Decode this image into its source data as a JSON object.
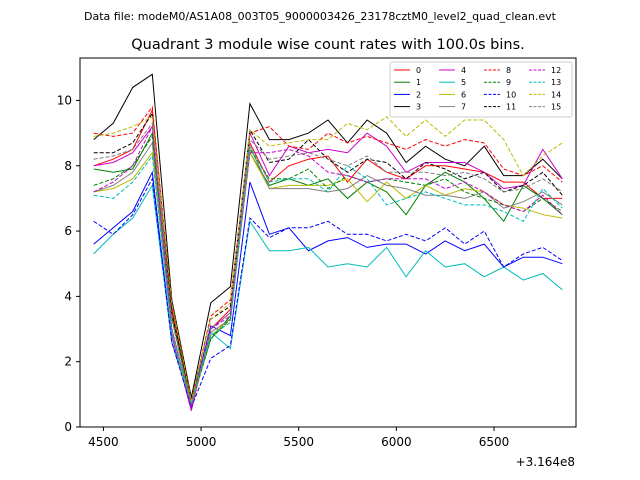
{
  "chart_data": {
    "type": "line",
    "suptitle": "Data file: modeM0/AS1A08_003T05_9000003426_23178cztM0_level2_quad_clean.evt",
    "title": "Quadrant 3 module wise count rates with 100.0s bins.",
    "xlabel": "",
    "ylabel": "",
    "x_offset_label": "+3.164e8",
    "xlim": [
      4380,
      6920
    ],
    "ylim": [
      0,
      11.3
    ],
    "x_ticks": [
      4500,
      5000,
      5500,
      6000,
      6500
    ],
    "y_ticks": [
      0,
      2,
      4,
      6,
      8,
      10
    ],
    "grid": false,
    "legend_position": "top-right",
    "legend_columns": 4,
    "x": [
      4450,
      4550,
      4650,
      4750,
      4850,
      4950,
      5050,
      5150,
      5250,
      5350,
      5450,
      5550,
      5650,
      5750,
      5850,
      5950,
      6050,
      6150,
      6250,
      6350,
      6450,
      6550,
      6650,
      6750,
      6850
    ],
    "series": [
      {
        "name": "0",
        "color": "#ff0000",
        "style": "solid",
        "values": [
          8.0,
          8.2,
          8.5,
          9.7,
          3.7,
          0.8,
          3.0,
          3.6,
          8.7,
          7.5,
          8.0,
          8.2,
          8.3,
          7.5,
          8.2,
          7.8,
          7.6,
          8.0,
          8.0,
          7.9,
          7.8,
          7.5,
          7.5,
          7.0,
          7.0
        ]
      },
      {
        "name": "1",
        "color": "#008000",
        "style": "solid",
        "values": [
          7.9,
          7.8,
          7.9,
          9.0,
          3.4,
          0.7,
          2.7,
          3.4,
          8.4,
          7.4,
          7.6,
          7.4,
          7.6,
          7.0,
          7.5,
          7.2,
          6.5,
          7.4,
          7.8,
          7.5,
          7.0,
          6.3,
          7.4,
          7.0,
          6.5
        ]
      },
      {
        "name": "2",
        "color": "#0000ff",
        "style": "solid",
        "values": [
          5.6,
          6.1,
          6.6,
          7.8,
          2.6,
          0.7,
          3.1,
          2.8,
          7.5,
          5.9,
          6.1,
          5.4,
          5.7,
          5.8,
          5.5,
          5.6,
          5.6,
          5.3,
          5.7,
          5.4,
          5.6,
          4.9,
          5.2,
          5.2,
          5.0
        ]
      },
      {
        "name": "3",
        "color": "#000000",
        "style": "solid",
        "values": [
          8.8,
          9.3,
          10.4,
          10.8,
          3.9,
          0.9,
          3.8,
          4.3,
          9.9,
          8.8,
          8.8,
          9.0,
          9.4,
          8.7,
          9.4,
          9.0,
          8.1,
          8.6,
          8.2,
          8.0,
          8.6,
          7.7,
          7.7,
          8.2,
          7.6
        ]
      },
      {
        "name": "4",
        "color": "#cc00cc",
        "style": "solid",
        "values": [
          8.0,
          8.1,
          8.4,
          9.2,
          2.8,
          0.5,
          3.0,
          3.5,
          9.0,
          7.7,
          8.6,
          8.4,
          8.5,
          8.4,
          9.0,
          8.6,
          7.8,
          8.1,
          8.1,
          8.1,
          7.8,
          7.3,
          7.4,
          8.5,
          7.6
        ]
      },
      {
        "name": "5",
        "color": "#00bbbb",
        "style": "solid",
        "values": [
          5.3,
          5.9,
          6.4,
          7.4,
          2.6,
          0.7,
          2.9,
          2.4,
          6.3,
          5.4,
          5.4,
          5.5,
          4.9,
          5.0,
          4.9,
          5.5,
          4.6,
          5.4,
          4.9,
          5.0,
          4.6,
          4.9,
          4.5,
          4.7,
          4.2
        ]
      },
      {
        "name": "6",
        "color": "#bbbb00",
        "style": "solid",
        "values": [
          7.2,
          7.3,
          7.6,
          8.4,
          2.9,
          0.6,
          2.8,
          3.3,
          8.4,
          7.3,
          7.4,
          7.4,
          7.4,
          7.6,
          6.9,
          7.5,
          7.0,
          7.4,
          7.1,
          7.3,
          7.2,
          6.8,
          6.7,
          6.5,
          6.4
        ]
      },
      {
        "name": "7",
        "color": "#808080",
        "style": "solid",
        "values": [
          7.2,
          7.4,
          7.8,
          8.7,
          3.0,
          0.7,
          2.9,
          3.3,
          8.6,
          7.3,
          7.3,
          7.3,
          7.2,
          7.3,
          7.7,
          7.4,
          7.3,
          7.1,
          7.1,
          7.0,
          7.2,
          6.7,
          6.9,
          7.2,
          6.8
        ]
      },
      {
        "name": "8",
        "color": "#ff0000",
        "style": "dashed",
        "values": [
          9.0,
          8.9,
          9.0,
          9.8,
          3.6,
          0.8,
          3.4,
          3.9,
          9.0,
          9.2,
          8.6,
          8.5,
          9.0,
          8.7,
          8.9,
          8.7,
          8.5,
          8.8,
          8.6,
          8.8,
          8.7,
          7.9,
          7.7,
          8.0,
          7.5
        ]
      },
      {
        "name": "9",
        "color": "#008000",
        "style": "dashed",
        "values": [
          7.4,
          7.6,
          8.0,
          8.9,
          3.3,
          0.7,
          2.7,
          3.3,
          8.5,
          7.6,
          7.6,
          7.9,
          7.3,
          7.7,
          7.5,
          7.6,
          7.5,
          7.4,
          7.6,
          7.2,
          7.0,
          6.8,
          6.6,
          7.0,
          6.6
        ]
      },
      {
        "name": "10",
        "color": "#0000ff",
        "style": "dashed",
        "values": [
          6.3,
          5.9,
          6.5,
          7.6,
          2.6,
          0.6,
          2.1,
          2.5,
          6.4,
          5.8,
          6.1,
          6.1,
          6.3,
          5.9,
          5.9,
          5.7,
          5.9,
          5.7,
          6.1,
          5.6,
          6.0,
          4.9,
          5.3,
          5.5,
          5.1
        ]
      },
      {
        "name": "11",
        "color": "#000000",
        "style": "dashed",
        "values": [
          8.4,
          8.4,
          8.7,
          9.6,
          3.5,
          0.8,
          3.3,
          3.7,
          9.1,
          8.1,
          8.2,
          8.8,
          8.2,
          7.8,
          8.2,
          8.1,
          7.6,
          8.1,
          7.9,
          7.6,
          7.8,
          7.2,
          7.4,
          7.8,
          7.1
        ]
      },
      {
        "name": "12",
        "color": "#cc00cc",
        "style": "dashed",
        "values": [
          7.2,
          7.5,
          8.0,
          9.2,
          3.0,
          0.6,
          3.0,
          3.4,
          8.4,
          8.4,
          8.5,
          8.3,
          7.8,
          7.7,
          7.5,
          7.6,
          7.6,
          7.6,
          7.3,
          7.5,
          7.2,
          6.8,
          6.6,
          7.1,
          6.5
        ]
      },
      {
        "name": "13",
        "color": "#00bbbb",
        "style": "dashed",
        "values": [
          7.1,
          7.0,
          7.5,
          8.3,
          2.9,
          0.7,
          2.8,
          3.2,
          8.6,
          7.5,
          7.6,
          7.6,
          7.2,
          8.0,
          7.6,
          6.8,
          7.0,
          7.2,
          7.0,
          6.8,
          6.8,
          6.6,
          6.3,
          7.3,
          6.7
        ]
      },
      {
        "name": "14",
        "color": "#bbbb00",
        "style": "dashed",
        "values": [
          8.9,
          9.0,
          9.2,
          9.5,
          3.8,
          0.8,
          3.3,
          3.8,
          9.1,
          8.6,
          8.7,
          8.8,
          8.8,
          9.3,
          9.1,
          9.5,
          8.9,
          9.4,
          8.9,
          9.4,
          9.4,
          8.8,
          7.7,
          8.3,
          8.7
        ]
      },
      {
        "name": "15",
        "color": "#808080",
        "style": "dashed",
        "values": [
          8.2,
          8.3,
          8.5,
          9.3,
          3.3,
          0.7,
          3.0,
          3.5,
          8.8,
          8.2,
          8.3,
          8.4,
          8.2,
          8.0,
          8.3,
          7.8,
          7.8,
          7.8,
          7.7,
          7.8,
          7.6,
          7.2,
          7.3,
          7.6,
          7.2
        ]
      }
    ]
  }
}
